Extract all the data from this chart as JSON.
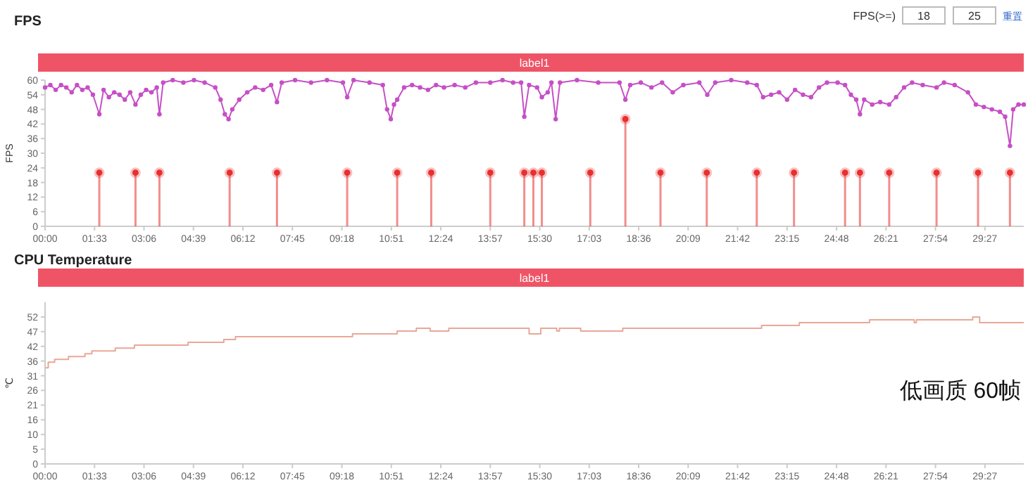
{
  "chart_data": [
    {
      "type": "line",
      "title": "FPS",
      "ylabel": "FPS",
      "xlim": [
        0,
        1840
      ],
      "ylim": [
        0,
        60
      ],
      "xticks": [
        {
          "value": 0,
          "label": "00:00"
        },
        {
          "value": 93,
          "label": "01:33"
        },
        {
          "value": 186,
          "label": "03:06"
        },
        {
          "value": 279,
          "label": "04:39"
        },
        {
          "value": 372,
          "label": "06:12"
        },
        {
          "value": 465,
          "label": "07:45"
        },
        {
          "value": 558,
          "label": "09:18"
        },
        {
          "value": 651,
          "label": "10:51"
        },
        {
          "value": 744,
          "label": "12:24"
        },
        {
          "value": 837,
          "label": "13:57"
        },
        {
          "value": 930,
          "label": "15:30"
        },
        {
          "value": 1023,
          "label": "17:03"
        },
        {
          "value": 1116,
          "label": "18:36"
        },
        {
          "value": 1209,
          "label": "20:09"
        },
        {
          "value": 1302,
          "label": "21:42"
        },
        {
          "value": 1395,
          "label": "23:15"
        },
        {
          "value": 1488,
          "label": "24:48"
        },
        {
          "value": 1581,
          "label": "26:21"
        },
        {
          "value": 1674,
          "label": "27:54"
        },
        {
          "value": 1767,
          "label": "29:27"
        }
      ],
      "yticks": [
        0,
        6,
        12,
        18,
        24,
        30,
        36,
        42,
        48,
        54,
        60
      ],
      "grid": false,
      "annotations": [
        "label1",
        "FPS(>=)",
        "18",
        "25",
        "重置"
      ],
      "series": [
        {
          "color": "#c64fc6",
          "marker": "circle",
          "line_style": "solid",
          "x": [
            0,
            10,
            20,
            30,
            40,
            50,
            60,
            70,
            80,
            90,
            102,
            110,
            120,
            130,
            140,
            150,
            160,
            170,
            180,
            190,
            200,
            210,
            215,
            222,
            240,
            260,
            280,
            300,
            320,
            330,
            338,
            345,
            352,
            365,
            380,
            395,
            410,
            425,
            436,
            445,
            470,
            500,
            530,
            560,
            568,
            580,
            610,
            635,
            643,
            650,
            656,
            662,
            675,
            690,
            705,
            720,
            735,
            750,
            770,
            790,
            810,
            837,
            860,
            880,
            895,
            901,
            910,
            925,
            934,
            945,
            952,
            960,
            968,
            1000,
            1040,
            1080,
            1091,
            1100,
            1120,
            1140,
            1160,
            1180,
            1200,
            1230,
            1245,
            1260,
            1290,
            1320,
            1338,
            1350,
            1365,
            1380,
            1395,
            1410,
            1425,
            1440,
            1455,
            1470,
            1490,
            1504,
            1515,
            1525,
            1532,
            1540,
            1555,
            1570,
            1587,
            1600,
            1615,
            1630,
            1650,
            1676,
            1690,
            1710,
            1735,
            1750,
            1765,
            1780,
            1795,
            1805,
            1814,
            1820,
            1830,
            1840
          ],
          "values": [
            57,
            58,
            56,
            58,
            57,
            55,
            58,
            56,
            57,
            54,
            46,
            56,
            53,
            55,
            54,
            52,
            55,
            50,
            54,
            56,
            55,
            57,
            46,
            59,
            60,
            59,
            60,
            59,
            57,
            52,
            46,
            44,
            48,
            52,
            55,
            57,
            56,
            58,
            51,
            59,
            60,
            59,
            60,
            59,
            53,
            60,
            59,
            58,
            48,
            44,
            50,
            52,
            57,
            58,
            57,
            56,
            58,
            57,
            58,
            57,
            59,
            59,
            60,
            59,
            59,
            45,
            58,
            57,
            53,
            55,
            59,
            44,
            59,
            60,
            59,
            59,
            52,
            58,
            59,
            57,
            59,
            55,
            58,
            59,
            54,
            59,
            60,
            59,
            58,
            53,
            54,
            55,
            52,
            56,
            54,
            53,
            57,
            59,
            59,
            58,
            54,
            52,
            46,
            52,
            50,
            51,
            50,
            53,
            57,
            59,
            58,
            57,
            59,
            58,
            55,
            50,
            49,
            48,
            47,
            45,
            33,
            48,
            50,
            50
          ]
        },
        {
          "type": "lollipop",
          "color": "#e83030",
          "marker": "circle",
          "x": [
            102,
            170,
            215,
            347,
            436,
            568,
            662,
            726,
            837,
            901,
            918,
            934,
            1025,
            1091,
            1157,
            1244,
            1338,
            1408,
            1504,
            1532,
            1587,
            1676,
            1754,
            1814
          ],
          "values": [
            22,
            22,
            22,
            22,
            22,
            22,
            22,
            22,
            22,
            22,
            22,
            22,
            22,
            44,
            22,
            22,
            22,
            22,
            22,
            22,
            22,
            22,
            22,
            22
          ]
        }
      ]
    },
    {
      "type": "step",
      "title": "CPU Temperature",
      "ylabel": "℃",
      "xlim": [
        0,
        1840
      ],
      "ylim": [
        0,
        57.2
      ],
      "xticks": [
        {
          "value": 0,
          "label": "00:00"
        },
        {
          "value": 93,
          "label": "01:33"
        },
        {
          "value": 186,
          "label": "03:06"
        },
        {
          "value": 279,
          "label": "04:39"
        },
        {
          "value": 372,
          "label": "06:12"
        },
        {
          "value": 465,
          "label": "07:45"
        },
        {
          "value": 558,
          "label": "09:18"
        },
        {
          "value": 651,
          "label": "10:51"
        },
        {
          "value": 744,
          "label": "12:24"
        },
        {
          "value": 837,
          "label": "13:57"
        },
        {
          "value": 930,
          "label": "15:30"
        },
        {
          "value": 1023,
          "label": "17:03"
        },
        {
          "value": 1116,
          "label": "18:36"
        },
        {
          "value": 1209,
          "label": "20:09"
        },
        {
          "value": 1302,
          "label": "21:42"
        },
        {
          "value": 1395,
          "label": "23:15"
        },
        {
          "value": 1488,
          "label": "24:48"
        },
        {
          "value": 1581,
          "label": "26:21"
        },
        {
          "value": 1674,
          "label": "27:54"
        },
        {
          "value": 1767,
          "label": "29:27"
        }
      ],
      "yticks": [
        0,
        {
          "value": 5.2,
          "label": "5"
        },
        {
          "value": 10.4,
          "label": "10"
        },
        {
          "value": 15.6,
          "label": "16"
        },
        {
          "value": 20.8,
          "label": "21"
        },
        26,
        {
          "value": 31.2,
          "label": "31"
        },
        {
          "value": 36.4,
          "label": "36"
        },
        {
          "value": 41.6,
          "label": "42"
        },
        {
          "value": 46.8,
          "label": "47"
        },
        52
      ],
      "grid": false,
      "annotations": [
        "label1",
        "低画质 60帧"
      ],
      "series": [
        {
          "color": "#e8a898",
          "line_style": "solid",
          "x": [
            0,
            6,
            18,
            44,
            75,
            88,
            132,
            168,
            269,
            336,
            358,
            578,
            662,
            698,
            724,
            759,
            910,
            932,
            962,
            967,
            1007,
            1086,
            1347,
            1418,
            1550,
            1634,
            1638,
            1744,
            1757,
            1840
          ],
          "values": [
            34,
            36,
            37,
            38,
            39,
            40,
            41,
            42,
            43,
            44,
            45,
            46,
            47,
            48,
            47,
            48,
            46,
            48,
            47,
            48,
            47,
            48,
            49,
            50,
            51,
            50,
            51,
            52,
            50,
            50
          ]
        }
      ]
    }
  ]
}
